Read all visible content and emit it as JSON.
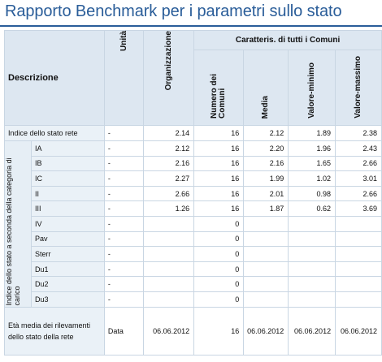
{
  "title": "Rapporto Benchmark per i parametri sullo stato",
  "headers": {
    "descrizione": "Descrizione",
    "unita": "Unità",
    "organizzazione": "Organizzazione",
    "caratteristiche": "Caratteris. di tutti i Comuni",
    "numero_comuni": "Numero dei Comuni",
    "media": "Media",
    "valore_minimo": "Valore-minimo",
    "valore_massimo": "Valore-massimo"
  },
  "row_indice": {
    "label": "Indice dello stato rete",
    "unit": "-",
    "org": "2.14",
    "num": "16",
    "media": "2.12",
    "min": "1.89",
    "max": "2.38"
  },
  "group_label": "Indice dello stato a seconda della categoria di carico",
  "sub_rows": [
    {
      "label": "IA",
      "unit": "-",
      "org": "2.12",
      "num": "16",
      "media": "2.20",
      "min": "1.96",
      "max": "2.43"
    },
    {
      "label": "IB",
      "unit": "-",
      "org": "2.16",
      "num": "16",
      "media": "2.16",
      "min": "1.65",
      "max": "2.66"
    },
    {
      "label": "IC",
      "unit": "-",
      "org": "2.27",
      "num": "16",
      "media": "1.99",
      "min": "1.02",
      "max": "3.01"
    },
    {
      "label": "II",
      "unit": "-",
      "org": "2.66",
      "num": "16",
      "media": "2.01",
      "min": "0.98",
      "max": "2.66"
    },
    {
      "label": "III",
      "unit": "-",
      "org": "1.26",
      "num": "16",
      "media": "1.87",
      "min": "0.62",
      "max": "3.69"
    },
    {
      "label": "IV",
      "unit": "-",
      "org": "",
      "num": "0",
      "media": "",
      "min": "",
      "max": ""
    },
    {
      "label": "Pav",
      "unit": "-",
      "org": "",
      "num": "0",
      "media": "",
      "min": "",
      "max": ""
    },
    {
      "label": "Sterr",
      "unit": "-",
      "org": "",
      "num": "0",
      "media": "",
      "min": "",
      "max": ""
    },
    {
      "label": "Du1",
      "unit": "-",
      "org": "",
      "num": "0",
      "media": "",
      "min": "",
      "max": ""
    },
    {
      "label": "Du2",
      "unit": "-",
      "org": "",
      "num": "0",
      "media": "",
      "min": "",
      "max": ""
    },
    {
      "label": "Du3",
      "unit": "-",
      "org": "",
      "num": "0",
      "media": "",
      "min": "",
      "max": ""
    }
  ],
  "row_eta": {
    "label": "Età media dei rilevamenti dello stato della rete",
    "unit": "Data",
    "org": "06.06.2012",
    "num": "16",
    "media": "06.06.2012",
    "min": "06.06.2012",
    "max": "06.06.2012"
  }
}
